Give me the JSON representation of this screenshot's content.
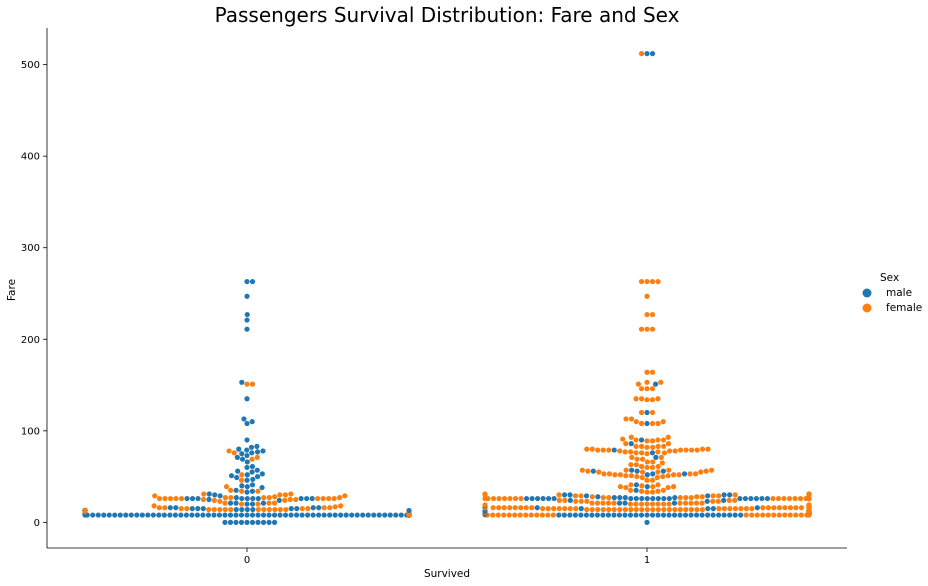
{
  "chart_data": {
    "type": "scatter",
    "subtype": "swarm",
    "title": "Passengers Survival Distribution: Fare and Sex",
    "xlabel": "Survived",
    "ylabel": "Fare",
    "categories": [
      "0",
      "1"
    ],
    "yticks": [
      0,
      100,
      200,
      300,
      400,
      500
    ],
    "ylim": [
      -28,
      540
    ],
    "grid": false,
    "legend": {
      "title": "Sex",
      "placement": "right",
      "entries": [
        "male",
        "female"
      ]
    },
    "colors": {
      "male": "#1f77b4",
      "female": "#ff7f0e"
    },
    "series": [
      {
        "name": "male",
        "category": "0",
        "values": [
          263,
          263,
          247,
          227,
          221,
          211,
          153,
          135,
          113,
          110,
          108,
          90,
          83,
          82,
          80,
          79,
          78,
          77,
          76,
          75,
          73,
          71,
          69,
          66,
          61,
          60,
          57,
          56,
          55,
          53,
          52,
          51,
          50,
          49,
          47,
          46,
          41,
          40,
          39,
          38,
          35,
          34,
          33,
          31,
          30,
          29,
          27,
          26,
          26,
          26,
          26,
          26,
          26,
          26,
          26,
          26,
          26,
          25,
          24,
          21,
          21,
          21,
          20,
          20,
          16,
          16,
          16,
          16,
          15,
          15,
          15,
          15,
          15,
          14,
          14,
          14,
          14,
          13,
          13,
          13,
          13,
          13,
          13,
          13,
          13,
          13,
          13,
          13,
          13,
          13,
          13,
          13,
          13,
          13,
          13,
          13,
          13,
          13,
          13,
          13,
          13,
          13,
          13,
          13,
          13,
          13,
          13,
          13,
          13,
          13,
          13,
          10,
          10,
          9,
          9,
          9,
          8,
          8,
          8,
          8,
          8,
          8,
          8,
          8,
          8,
          8,
          8,
          8,
          8,
          8,
          8,
          8,
          8,
          8,
          8,
          8,
          8,
          8,
          8,
          8,
          8,
          8,
          8,
          8,
          8,
          8,
          8,
          8,
          8,
          8,
          8,
          8,
          8,
          8,
          8,
          8,
          8,
          8,
          8,
          8,
          8,
          8,
          8,
          8,
          8,
          8,
          8,
          8,
          8,
          8,
          8,
          8,
          8,
          8,
          8,
          8,
          8,
          8,
          8,
          8,
          8,
          8,
          8,
          8,
          8,
          8,
          8,
          8,
          8,
          8,
          8,
          8,
          8,
          8,
          8,
          8,
          8,
          8,
          8,
          8,
          8,
          8,
          8,
          8,
          8,
          8,
          8,
          8,
          8,
          8,
          8,
          8,
          8,
          8,
          8,
          8,
          8,
          8,
          8,
          8,
          8,
          8,
          8,
          8,
          8,
          8,
          8,
          8,
          8,
          8,
          8,
          8,
          8,
          8,
          8,
          8,
          8,
          8,
          8,
          8,
          8,
          8,
          8,
          8,
          8,
          8,
          8,
          8,
          8,
          8,
          8,
          8,
          8,
          8,
          8,
          8,
          8,
          8,
          8,
          8,
          8,
          8,
          8,
          8,
          8,
          8,
          8,
          8,
          8,
          8,
          8,
          8,
          8,
          8,
          8,
          8,
          8,
          8,
          8,
          8,
          8,
          8,
          8,
          8,
          8,
          8,
          8,
          8,
          8,
          8,
          8,
          8,
          8,
          8,
          8,
          8,
          8,
          8,
          8,
          8,
          8,
          8,
          8,
          8,
          8,
          8,
          8,
          8,
          8,
          8,
          8,
          8,
          8,
          8,
          8,
          8,
          8,
          8,
          8,
          8,
          8,
          8,
          8,
          8,
          8,
          8,
          8,
          8,
          8,
          8,
          8,
          8,
          8,
          8,
          8,
          8,
          8,
          8,
          8,
          8,
          8,
          8,
          8,
          8,
          8,
          8,
          8,
          8,
          8,
          8,
          8,
          8,
          8,
          8,
          8,
          8,
          8,
          8,
          8,
          8,
          8,
          8,
          8,
          8,
          8,
          8,
          8,
          8,
          8,
          8,
          8,
          8,
          8,
          8,
          8,
          8,
          8,
          8,
          8,
          8,
          8,
          8,
          8,
          8,
          8,
          8,
          8,
          8,
          8,
          8,
          8,
          8,
          8,
          8,
          8,
          8,
          8,
          8,
          8,
          8,
          8,
          8,
          8,
          8,
          8,
          8,
          8,
          8,
          8,
          8,
          8,
          8,
          8,
          8,
          8,
          8,
          8,
          8,
          8,
          8,
          8,
          8,
          8,
          8,
          8,
          8,
          8,
          8,
          8,
          8,
          8,
          8,
          8,
          8,
          8,
          8,
          8,
          8,
          8,
          8,
          8,
          8,
          8,
          8,
          8,
          8,
          8,
          8,
          8,
          8,
          8,
          8,
          8,
          8,
          8,
          8,
          8,
          8,
          8,
          8,
          8,
          8,
          8,
          8,
          8,
          8,
          8,
          8,
          8,
          8,
          0,
          0,
          0,
          0,
          0,
          0,
          0,
          0,
          0,
          0
        ]
      },
      {
        "name": "female",
        "category": "0",
        "values": [
          151,
          151,
          78,
          76,
          71,
          69,
          52,
          46,
          39,
          35,
          34,
          34,
          31,
          31,
          30,
          30,
          29,
          29,
          28,
          27,
          27,
          27,
          27,
          27,
          26,
          26,
          26,
          26,
          26,
          26,
          26,
          26,
          26,
          25,
          25,
          25,
          24,
          24,
          23,
          21,
          21,
          21,
          20,
          20,
          18,
          18,
          17,
          16,
          16,
          16,
          16,
          15,
          15,
          15,
          15,
          14,
          14,
          14,
          14,
          14,
          14,
          14,
          14,
          14,
          14,
          14,
          13,
          12,
          12,
          11,
          10,
          10,
          10,
          10,
          10,
          9,
          9,
          9,
          9,
          8,
          8,
          8
        ]
      },
      {
        "name": "male",
        "category": "1",
        "values": [
          512,
          512,
          151,
          120,
          108,
          90,
          86,
          79,
          76,
          71,
          57,
          56,
          56,
          56,
          53,
          53,
          52,
          41,
          39,
          35,
          31,
          30,
          30,
          30,
          30,
          29,
          29,
          28,
          27,
          27,
          27,
          27,
          26,
          26,
          26,
          26,
          26,
          26,
          26,
          26,
          26,
          26,
          26,
          26,
          26,
          26,
          26,
          26,
          26,
          26,
          26,
          26,
          24,
          24,
          23,
          21,
          21,
          21,
          18,
          18,
          16,
          16,
          15,
          15,
          15,
          13,
          13,
          13,
          13,
          13,
          13,
          13,
          13,
          13,
          13,
          13,
          13,
          13,
          13,
          13,
          13,
          13,
          13,
          13,
          12,
          12,
          11,
          10,
          10,
          10,
          10,
          9,
          9,
          9,
          9,
          8,
          8,
          8,
          8,
          8,
          8,
          8,
          8,
          8,
          8,
          8,
          8,
          8,
          8,
          8,
          8,
          8,
          8,
          8,
          8,
          8,
          8,
          8,
          8,
          8,
          8,
          8,
          8,
          8,
          8,
          8,
          8,
          8,
          8,
          0
        ]
      },
      {
        "name": "female",
        "category": "1",
        "values": [
          512,
          263,
          263,
          263,
          263,
          247,
          227,
          227,
          211,
          211,
          211,
          164,
          164,
          153,
          153,
          151,
          146,
          146,
          146,
          135,
          135,
          135,
          134,
          134,
          120,
          120,
          113,
          113,
          110,
          110,
          108,
          108,
          108,
          93,
          93,
          91,
          90,
          90,
          90,
          89,
          89,
          86,
          86,
          83,
          83,
          83,
          83,
          82,
          82,
          80,
          80,
          80,
          80,
          79,
          79,
          79,
          79,
          79,
          79,
          79,
          78,
          78,
          78,
          77,
          77,
          77,
          76,
          76,
          76,
          75,
          71,
          71,
          69,
          69,
          66,
          66,
          65,
          63,
          63,
          61,
          61,
          60,
          60,
          57,
          57,
          57,
          57,
          56,
          56,
          55,
          55,
          55,
          55,
          53,
          53,
          53,
          53,
          52,
          52,
          52,
          52,
          51,
          51,
          51,
          50,
          50,
          49,
          49,
          46,
          46,
          41,
          41,
          40,
          39,
          39,
          39,
          38,
          38,
          35,
          35,
          34,
          34,
          33,
          33,
          31,
          31,
          30,
          30,
          30,
          30,
          30,
          30,
          29,
          29,
          29,
          29,
          28,
          28,
          28,
          27,
          27,
          27,
          27,
          27,
          26,
          26,
          26,
          26,
          26,
          26,
          26,
          26,
          26,
          26,
          26,
          26,
          26,
          26,
          26,
          26,
          26,
          26,
          26,
          26,
          26,
          26,
          26,
          26,
          26,
          26,
          26,
          26,
          26,
          26,
          26,
          26,
          26,
          26,
          26,
          26,
          26,
          26,
          26,
          26,
          26,
          26,
          26,
          26,
          26,
          26,
          26,
          26,
          26,
          26,
          24,
          24,
          24,
          24,
          23,
          23,
          23,
          23,
          23,
          21,
          21,
          21,
          21,
          21,
          21,
          21,
          21,
          21,
          21,
          20,
          20,
          20,
          20,
          20,
          20,
          20,
          20,
          19,
          19,
          19,
          19,
          18,
          18,
          18,
          18,
          18,
          18,
          18,
          17,
          17,
          17,
          17,
          17,
          16,
          16,
          16,
          16,
          16,
          16,
          16,
          16,
          16,
          16,
          16,
          16,
          16,
          16,
          16,
          16,
          16,
          16,
          16,
          16,
          16,
          16,
          15,
          15,
          15,
          15,
          15,
          15,
          15,
          15,
          15,
          15,
          15,
          15,
          15,
          15,
          14,
          14,
          14,
          14,
          14,
          14,
          14,
          14,
          14,
          14,
          14,
          14,
          14,
          14,
          14,
          14,
          14,
          14,
          14,
          14,
          14,
          14,
          13,
          13,
          13,
          13,
          13,
          13,
          13,
          13,
          13,
          13,
          13,
          13,
          13,
          13,
          13,
          13,
          13,
          13,
          12,
          12,
          12,
          12,
          12,
          12,
          12,
          11,
          11,
          11,
          11,
          11,
          11,
          11,
          11,
          10,
          10,
          10,
          10,
          10,
          10,
          10,
          10,
          10,
          10,
          10,
          10,
          10,
          10,
          9,
          9,
          9,
          9,
          9,
          9,
          9,
          9,
          9,
          9,
          9,
          9,
          9,
          9,
          9,
          9,
          8,
          8,
          8,
          8,
          8,
          8,
          8,
          8,
          8,
          8,
          8,
          8,
          8,
          8,
          8,
          8,
          8,
          8,
          8,
          8,
          8,
          8,
          8,
          8,
          8,
          8,
          8,
          8
        ]
      }
    ]
  }
}
